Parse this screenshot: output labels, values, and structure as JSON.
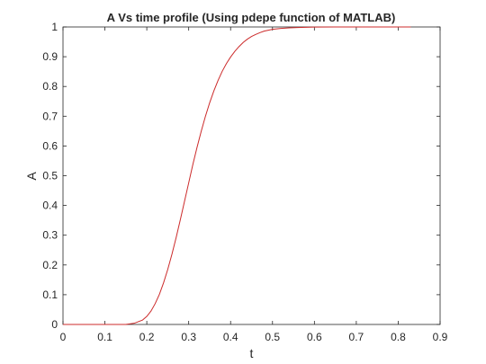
{
  "chart_data": {
    "type": "line",
    "title": "A Vs time profile (Using pdepe function of MATLAB)",
    "xlabel": "t",
    "ylabel": "A",
    "xlim": [
      0,
      0.9
    ],
    "ylim": [
      0,
      1
    ],
    "xticks": [
      "0",
      "0.1",
      "0.2",
      "0.3",
      "0.4",
      "0.5",
      "0.6",
      "0.7",
      "0.8",
      "0.9"
    ],
    "yticks": [
      "0",
      "0.1",
      "0.2",
      "0.3",
      "0.4",
      "0.5",
      "0.6",
      "0.7",
      "0.8",
      "0.9",
      "1"
    ],
    "grid": false,
    "series": [
      {
        "color": "#cc2b2b",
        "x": [
          0.0,
          0.05,
          0.1,
          0.15,
          0.17,
          0.19,
          0.2,
          0.21,
          0.22,
          0.23,
          0.24,
          0.25,
          0.26,
          0.27,
          0.28,
          0.29,
          0.3,
          0.31,
          0.32,
          0.33,
          0.34,
          0.35,
          0.36,
          0.37,
          0.38,
          0.39,
          0.4,
          0.41,
          0.42,
          0.43,
          0.44,
          0.45,
          0.46,
          0.47,
          0.48,
          0.49,
          0.5,
          0.52,
          0.54,
          0.56,
          0.58,
          0.6,
          0.65,
          0.7,
          0.75,
          0.8,
          0.83
        ],
        "y": [
          0.0,
          0.0,
          0.0,
          0.0,
          0.004,
          0.015,
          0.027,
          0.045,
          0.07,
          0.101,
          0.14,
          0.185,
          0.236,
          0.292,
          0.352,
          0.414,
          0.476,
          0.538,
          0.596,
          0.65,
          0.7,
          0.745,
          0.785,
          0.82,
          0.851,
          0.877,
          0.899,
          0.918,
          0.934,
          0.948,
          0.959,
          0.968,
          0.975,
          0.981,
          0.986,
          0.989,
          0.992,
          0.995,
          0.997,
          0.998,
          0.999,
          0.9995,
          1.0,
          1.0,
          1.0,
          1.0,
          1.0
        ]
      }
    ]
  }
}
